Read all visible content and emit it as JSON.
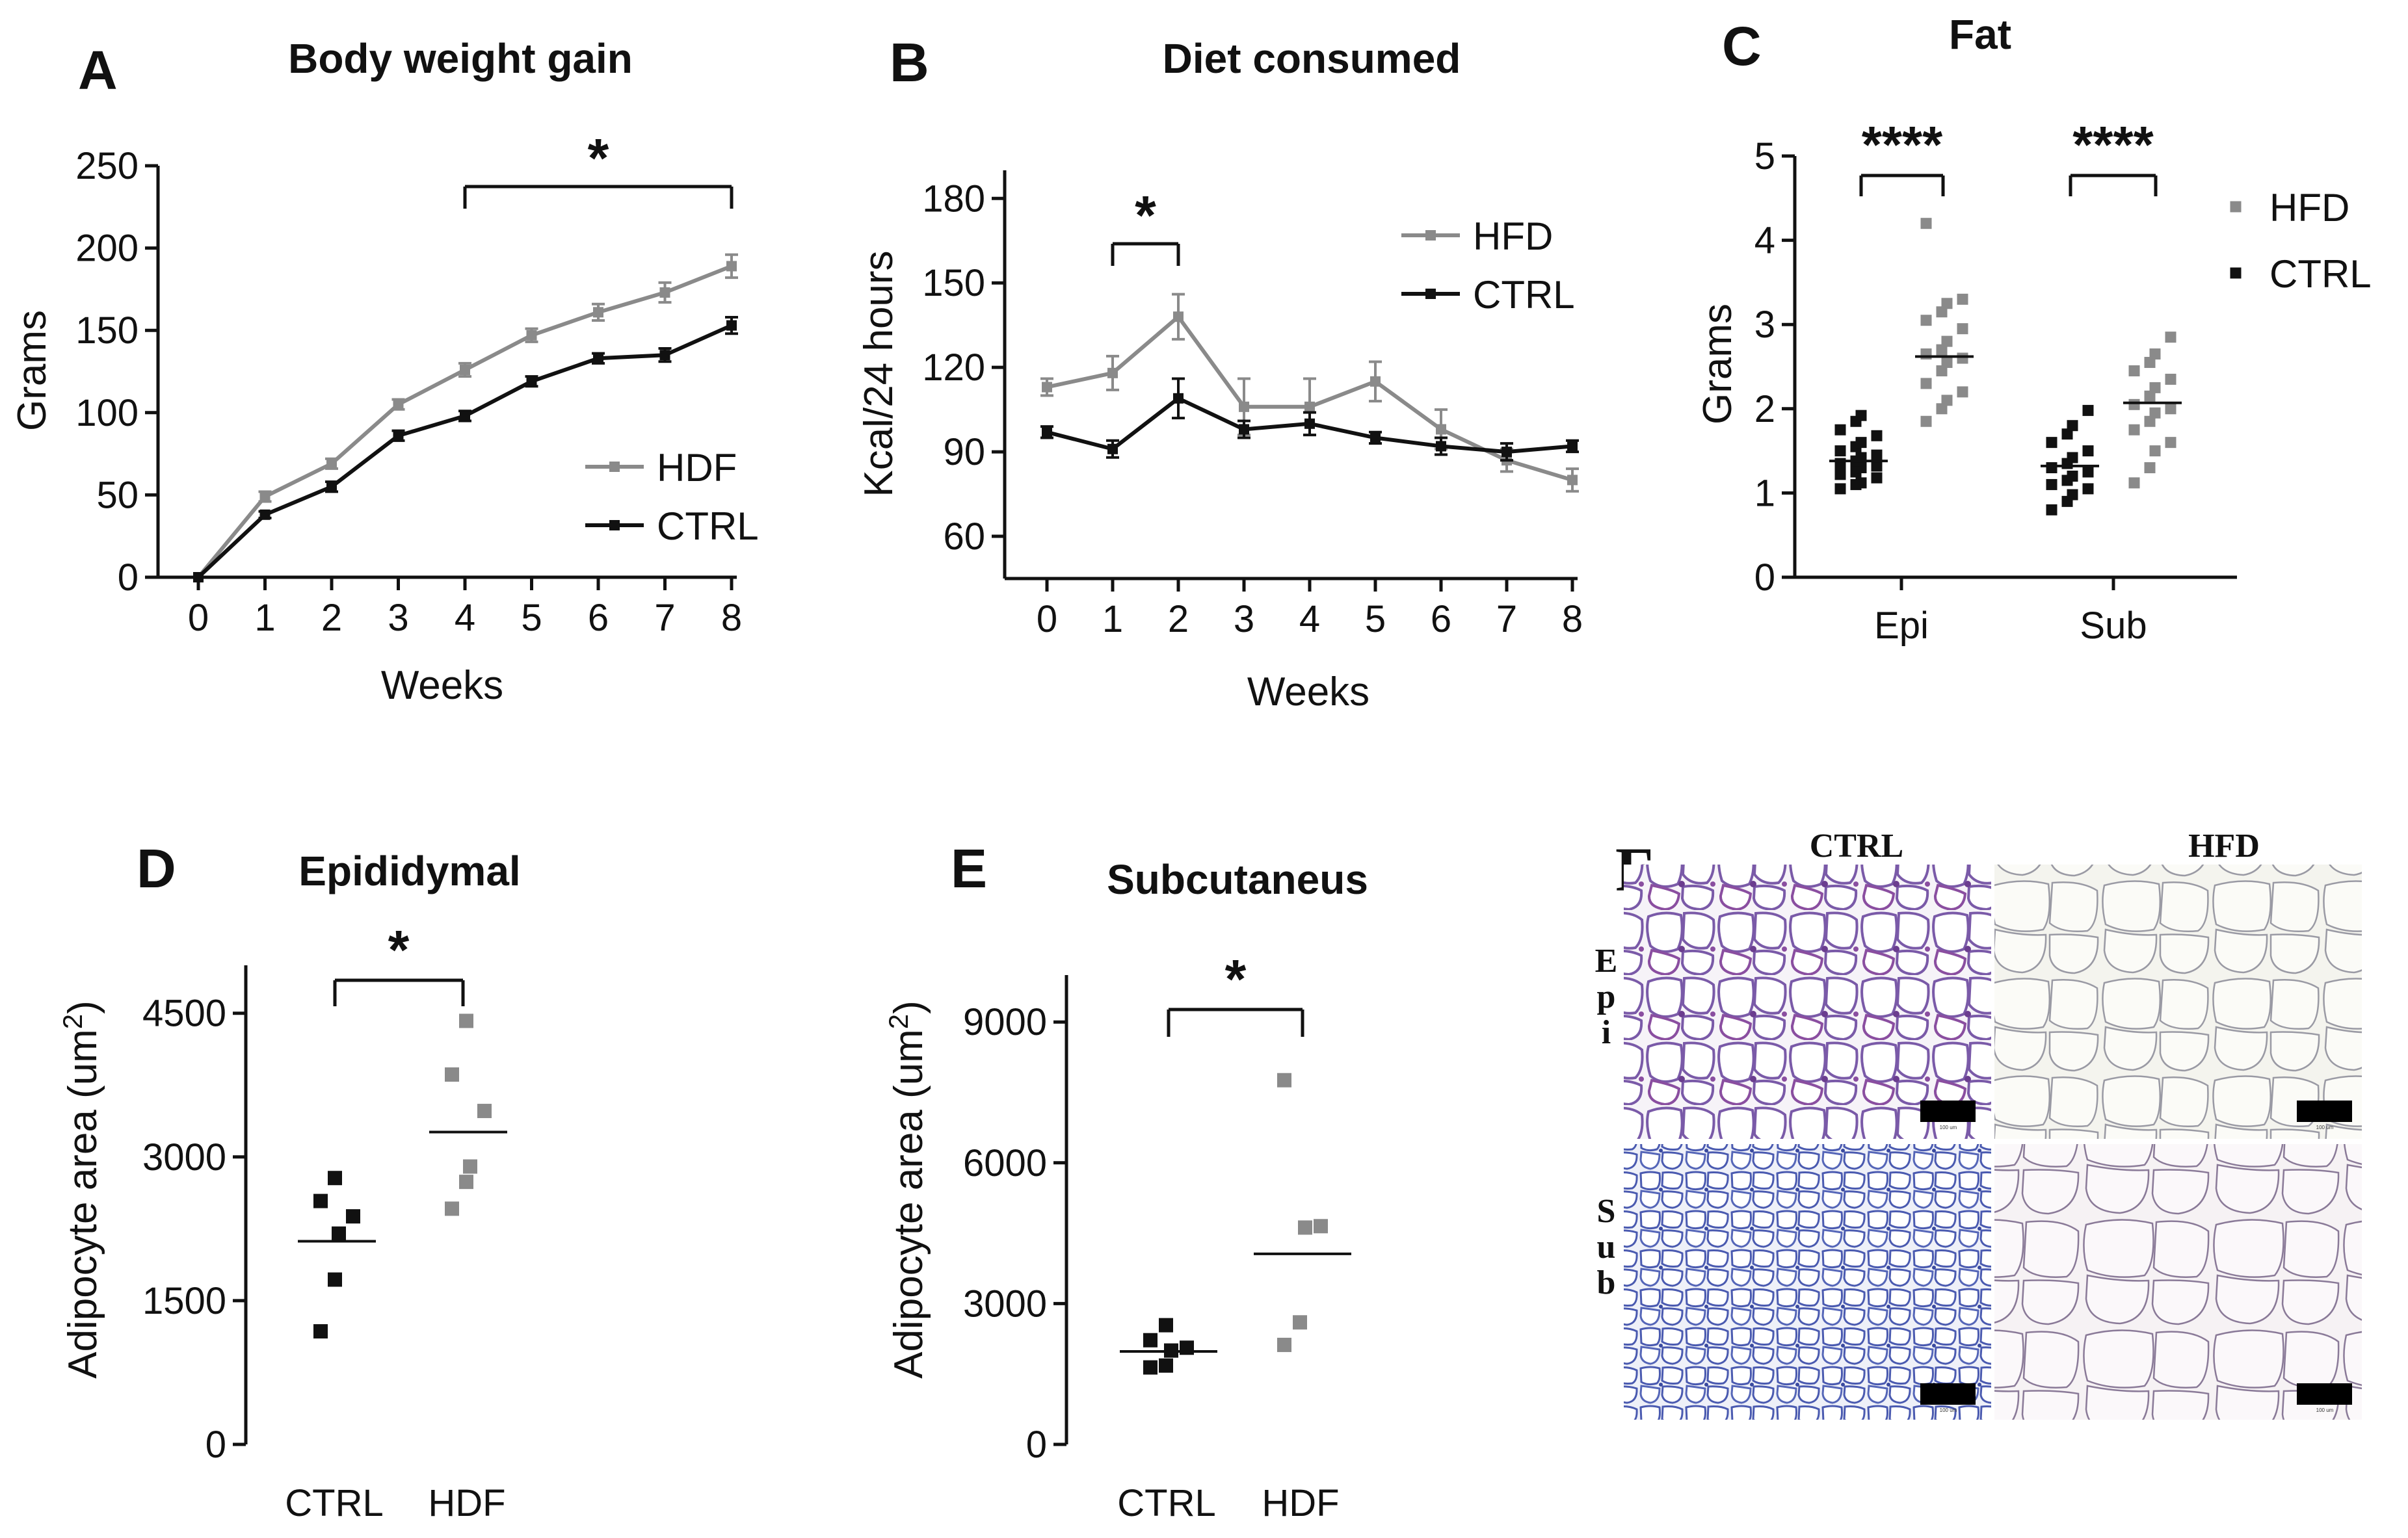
{
  "colors": {
    "hfd": "#8a8a8a",
    "ctrl": "#111111"
  },
  "chart_data": [
    {
      "panel": "A",
      "type": "line",
      "title": "Body weight gain",
      "xlabel": "Weeks",
      "ylabel": "Grams",
      "x": [
        0,
        1,
        2,
        3,
        4,
        5,
        6,
        7,
        8
      ],
      "ylim": [
        0,
        250
      ],
      "yticks": [
        0,
        50,
        100,
        150,
        200,
        250
      ],
      "series": [
        {
          "name": "HDF",
          "values": [
            0,
            49,
            69,
            105,
            126,
            147,
            161,
            173,
            189
          ],
          "errors": [
            0,
            3,
            3,
            3,
            4,
            4,
            5,
            6,
            7
          ]
        },
        {
          "name": "CTRL",
          "values": [
            0,
            38,
            55,
            86,
            98,
            119,
            133,
            135,
            153
          ],
          "errors": [
            0,
            2,
            3,
            3,
            3,
            3,
            3,
            4,
            5
          ]
        }
      ],
      "legend": [
        "HDF",
        "CTRL"
      ],
      "significance": [
        {
          "from": 4,
          "to": 8,
          "label": "*"
        }
      ]
    },
    {
      "panel": "B",
      "type": "line",
      "title": "Diet consumed",
      "xlabel": "Weeks",
      "ylabel": "Kcal/24 hours",
      "x": [
        0,
        1,
        2,
        3,
        4,
        5,
        6,
        7,
        8
      ],
      "ylim": [
        45,
        190
      ],
      "yticks": [
        60,
        90,
        120,
        150,
        180
      ],
      "series": [
        {
          "name": "HFD",
          "values": [
            113,
            118,
            138,
            106,
            106,
            115,
            98,
            87,
            80
          ],
          "errors": [
            3,
            6,
            8,
            10,
            10,
            7,
            7,
            4,
            4
          ]
        },
        {
          "name": "CTRL",
          "values": [
            97,
            91,
            109,
            98,
            100,
            95,
            92,
            90,
            92
          ],
          "errors": [
            2,
            3,
            7,
            3,
            4,
            2,
            3,
            3,
            2
          ]
        }
      ],
      "legend": [
        "HFD",
        "CTRL"
      ],
      "significance": [
        {
          "from": 1,
          "to": 2,
          "label": "*"
        }
      ]
    },
    {
      "panel": "C",
      "type": "scatter",
      "title": "Fat",
      "ylabel": "Grams",
      "categories": [
        "Epi",
        "Sub"
      ],
      "ylim": [
        0,
        5
      ],
      "yticks": [
        0,
        1,
        2,
        3,
        4,
        5
      ],
      "groups": [
        {
          "category": "Epi",
          "name": "CTRL",
          "mean": 1.38,
          "points": [
            1.05,
            1.1,
            1.12,
            1.18,
            1.22,
            1.25,
            1.3,
            1.32,
            1.35,
            1.38,
            1.42,
            1.45,
            1.5,
            1.55,
            1.6,
            1.68,
            1.75,
            1.85,
            1.92
          ]
        },
        {
          "category": "Epi",
          "name": "HFD",
          "mean": 2.62,
          "points": [
            1.85,
            2.0,
            2.1,
            2.2,
            2.3,
            2.45,
            2.55,
            2.6,
            2.65,
            2.7,
            2.8,
            2.95,
            3.05,
            3.15,
            3.25,
            3.3,
            4.2
          ]
        },
        {
          "category": "Sub",
          "name": "CTRL",
          "mean": 1.32,
          "points": [
            0.8,
            0.9,
            0.98,
            1.05,
            1.1,
            1.15,
            1.2,
            1.25,
            1.3,
            1.35,
            1.42,
            1.5,
            1.6,
            1.7,
            1.8,
            1.98
          ]
        },
        {
          "category": "Sub",
          "name": "HFD",
          "mean": 2.07,
          "points": [
            1.12,
            1.3,
            1.5,
            1.6,
            1.75,
            1.85,
            1.95,
            2.0,
            2.05,
            2.15,
            2.25,
            2.35,
            2.45,
            2.55,
            2.65,
            2.85
          ]
        }
      ],
      "legend": [
        "HFD",
        "CTRL"
      ],
      "significance": [
        {
          "category": "Epi",
          "label": "****"
        },
        {
          "category": "Sub",
          "label": "****"
        }
      ]
    },
    {
      "panel": "D",
      "type": "scatter",
      "title": "Epididymal",
      "ylabel": "Adipocyte area (um²)",
      "categories": [
        "CTRL",
        "HDF"
      ],
      "ylim": [
        0,
        5000
      ],
      "yticks": [
        0,
        1500,
        3000,
        4500
      ],
      "groups": [
        {
          "category": "CTRL",
          "mean": 2120,
          "points": [
            1180,
            1720,
            2200,
            2380,
            2540,
            2780
          ]
        },
        {
          "category": "HDF",
          "mean": 3260,
          "points": [
            2460,
            2740,
            2900,
            3480,
            3860,
            4420
          ]
        }
      ],
      "significance": [
        {
          "from": "CTRL",
          "to": "HDF",
          "label": "*"
        }
      ]
    },
    {
      "panel": "E",
      "type": "scatter",
      "title": "Subcutaneus",
      "ylabel": "Adipocyte area (um²)",
      "categories": [
        "CTRL",
        "HDF"
      ],
      "ylim": [
        0,
        10000
      ],
      "yticks": [
        0,
        3000,
        6000,
        9000
      ],
      "groups": [
        {
          "category": "CTRL",
          "mean": 1980,
          "points": [
            1640,
            1680,
            2000,
            2060,
            2220,
            2540
          ]
        },
        {
          "category": "HDF",
          "mean": 4060,
          "points": [
            2120,
            2600,
            4620,
            4650,
            7760
          ]
        }
      ],
      "significance": [
        {
          "from": "CTRL",
          "to": "HDF",
          "label": "*"
        }
      ]
    }
  ],
  "panel_labels": [
    "A",
    "B",
    "C",
    "D",
    "E",
    "F"
  ],
  "titles": {
    "A": "Body weight gain",
    "B": "Diet consumed",
    "C": "Fat",
    "D": "Epididymal",
    "E": "Subcutaneus"
  },
  "axis_labels": {
    "weeks": "Weeks",
    "grams": "Grams",
    "kcal": "Kcal/24 hours",
    "adipo_main": "Adipocyte area (um",
    "adipo_sup": "2",
    "adipo_close": ")"
  },
  "histology": {
    "col_ctrl": "CTRL",
    "col_hfd": "HFD",
    "row_epi": [
      "E",
      "p",
      "i"
    ],
    "row_sub": [
      "S",
      "u",
      "b"
    ],
    "scale_bar": "100 um"
  }
}
